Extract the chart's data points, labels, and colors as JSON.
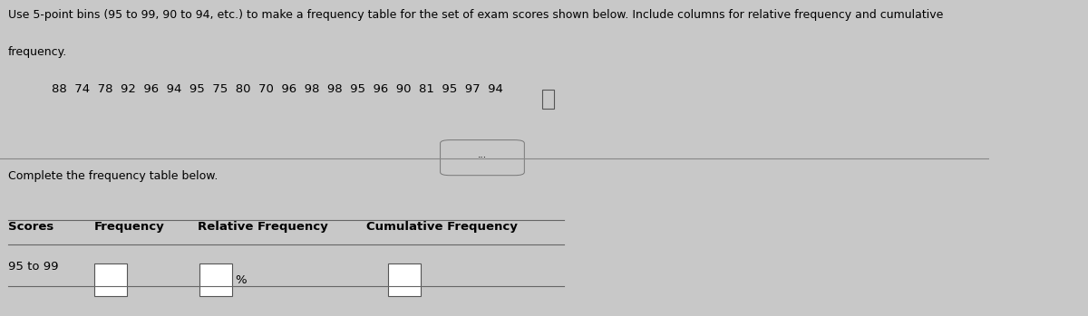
{
  "title_line1": "Use 5-point bins (95 to 99, 90 to 94, etc.) to make a frequency table for the set of exam scores shown below. Include columns for relative frequency and cumulative",
  "title_line2": "frequency.",
  "scores_line": "88  74  78  92  96  94  95  75  80  70  96  98  98  95  96  90  81  95  97  94",
  "instruction": "Complete the frequency table below.",
  "col_headers": [
    "Scores",
    "Frequency",
    "Relative Frequency",
    "Cumulative Frequency"
  ],
  "row_label": "95 to 99",
  "bg_color": "#c8c8c8",
  "text_color": "#000000",
  "line_color": "#666666",
  "divider_color": "#888888",
  "font_size_title": 9.0,
  "font_size_scores": 9.5,
  "font_size_table": 9.5
}
